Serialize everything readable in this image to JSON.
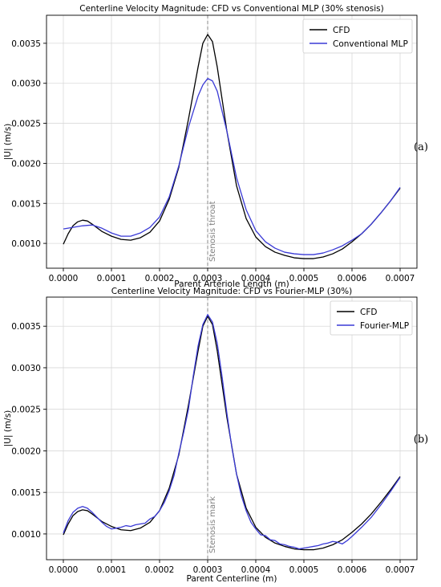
{
  "chart_data": [
    {
      "type": "line",
      "title": "Centerline Velocity Magnitude: CFD vs Conventional MLP (30% stenosis)",
      "xlabel": "Parent Arteriole Length (m)",
      "ylabel": "|U| (m/s)",
      "xlim": [
        -3.5e-05,
        0.000735
      ],
      "ylim": [
        0.00069,
        0.00385
      ],
      "xticks": [
        "0.0000",
        "0.0001",
        "0.0002",
        "0.0003",
        "0.0004",
        "0.0005",
        "0.0006",
        "0.0007"
      ],
      "xtick_values": [
        0,
        0.0001,
        0.0002,
        0.0003,
        0.0004,
        0.0005,
        0.0006,
        0.0007
      ],
      "yticks": [
        "0.0010",
        "0.0015",
        "0.0020",
        "0.0025",
        "0.0030",
        "0.0035"
      ],
      "ytick_values": [
        0.001,
        0.0015,
        0.002,
        0.0025,
        0.003,
        0.0035
      ],
      "grid": true,
      "legend_position": "top-right",
      "panel_label": "(a)",
      "annotation": {
        "text": "Stenosis throat",
        "x": 0.0003
      },
      "series": [
        {
          "name": "CFD",
          "color": "#000000",
          "x": [
            0,
            1e-05,
            2e-05,
            3e-05,
            4e-05,
            5e-05,
            6e-05,
            8e-05,
            0.0001,
            0.00012,
            0.00014,
            0.00016,
            0.00018,
            0.0002,
            0.00022,
            0.00024,
            0.00026,
            0.00028,
            0.00029,
            0.0003,
            0.00031,
            0.00032,
            0.00034,
            0.00036,
            0.00038,
            0.0004,
            0.00042,
            0.00044,
            0.00046,
            0.00048,
            0.0005,
            0.00052,
            0.00054,
            0.00056,
            0.00058,
            0.0006,
            0.00062,
            0.00064,
            0.00066,
            0.00068,
            0.0007
          ],
          "y": [
            0.00099,
            0.00112,
            0.00122,
            0.00127,
            0.00129,
            0.00128,
            0.00124,
            0.00115,
            0.00109,
            0.00105,
            0.00104,
            0.00107,
            0.00114,
            0.00128,
            0.00155,
            0.00195,
            0.00255,
            0.0032,
            0.0035,
            0.00361,
            0.00352,
            0.0032,
            0.0024,
            0.00172,
            0.00131,
            0.00108,
            0.00096,
            0.00089,
            0.00085,
            0.00082,
            0.00081,
            0.00081,
            0.00083,
            0.00087,
            0.00093,
            0.00102,
            0.00112,
            0.00124,
            0.00138,
            0.00153,
            0.00169
          ]
        },
        {
          "name": "Conventional MLP",
          "color": "#3a3ad6",
          "x": [
            0,
            2e-05,
            4e-05,
            6e-05,
            8e-05,
            0.0001,
            0.00012,
            0.00014,
            0.00016,
            0.00018,
            0.0002,
            0.00022,
            0.00024,
            0.00026,
            0.00028,
            0.00029,
            0.0003,
            0.00031,
            0.00032,
            0.00034,
            0.00036,
            0.00038,
            0.0004,
            0.00042,
            0.00044,
            0.00046,
            0.00048,
            0.0005,
            0.00052,
            0.00054,
            0.00056,
            0.00058,
            0.0006,
            0.00062,
            0.00064,
            0.00066,
            0.00068,
            0.0007
          ],
          "y": [
            0.00118,
            0.0012,
            0.00122,
            0.00123,
            0.00119,
            0.00113,
            0.00109,
            0.00109,
            0.00113,
            0.0012,
            0.00133,
            0.00158,
            0.00197,
            0.00245,
            0.00284,
            0.00298,
            0.00306,
            0.00303,
            0.0029,
            0.0024,
            0.00182,
            0.00142,
            0.00116,
            0.00102,
            0.00094,
            0.00089,
            0.00087,
            0.00086,
            0.00086,
            0.00088,
            0.00092,
            0.00097,
            0.00104,
            0.00112,
            0.00124,
            0.00138,
            0.00153,
            0.0017
          ]
        }
      ]
    },
    {
      "type": "line",
      "title": "Centerline Velocity Magnitude: CFD vs Fourier-MLP (30%)",
      "xlabel": "Parent Centerline (m)",
      "ylabel": "|U| (m/s)",
      "xlim": [
        -3.5e-05,
        0.000735
      ],
      "ylim": [
        0.00069,
        0.00385
      ],
      "xticks": [
        "0.0000",
        "0.0001",
        "0.0002",
        "0.0003",
        "0.0004",
        "0.0005",
        "0.0006",
        "0.0007"
      ],
      "xtick_values": [
        0,
        0.0001,
        0.0002,
        0.0003,
        0.0004,
        0.0005,
        0.0006,
        0.0007
      ],
      "yticks": [
        "0.0010",
        "0.0015",
        "0.0020",
        "0.0025",
        "0.0030",
        "0.0035"
      ],
      "ytick_values": [
        0.001,
        0.0015,
        0.002,
        0.0025,
        0.003,
        0.0035
      ],
      "grid": true,
      "legend_position": "top-right",
      "panel_label": "(b)",
      "annotation": {
        "text": "Stenosis mark",
        "x": 0.0003
      },
      "series": [
        {
          "name": "CFD",
          "color": "#000000",
          "x": [
            0,
            1e-05,
            2e-05,
            3e-05,
            4e-05,
            5e-05,
            6e-05,
            8e-05,
            0.0001,
            0.00012,
            0.00014,
            0.00016,
            0.00018,
            0.0002,
            0.00022,
            0.00024,
            0.00026,
            0.00028,
            0.00029,
            0.0003,
            0.00031,
            0.00032,
            0.00034,
            0.00036,
            0.00038,
            0.0004,
            0.00042,
            0.00044,
            0.00046,
            0.00048,
            0.0005,
            0.00052,
            0.00054,
            0.00056,
            0.00058,
            0.0006,
            0.00062,
            0.00064,
            0.00066,
            0.00068,
            0.0007
          ],
          "y": [
            0.00099,
            0.00112,
            0.00122,
            0.00127,
            0.00129,
            0.00128,
            0.00124,
            0.00115,
            0.00109,
            0.00105,
            0.00104,
            0.00107,
            0.00114,
            0.00128,
            0.00155,
            0.00195,
            0.00255,
            0.0032,
            0.0035,
            0.00362,
            0.00352,
            0.0032,
            0.0024,
            0.00172,
            0.00131,
            0.00108,
            0.00096,
            0.00089,
            0.00085,
            0.00082,
            0.00081,
            0.00081,
            0.00083,
            0.00087,
            0.00093,
            0.00102,
            0.00112,
            0.00124,
            0.00138,
            0.00153,
            0.00169
          ]
        },
        {
          "name": "Fourier-MLP",
          "color": "#3a3ad6",
          "x": [
            0,
            1e-05,
            2e-05,
            3e-05,
            4e-05,
            5e-05,
            6e-05,
            7e-05,
            8e-05,
            9e-05,
            0.0001,
            0.00011,
            0.00012,
            0.00013,
            0.00014,
            0.00015,
            0.00016,
            0.00017,
            0.00018,
            0.00019,
            0.0002,
            0.00021,
            0.00022,
            0.00023,
            0.00024,
            0.00025,
            0.00026,
            0.00027,
            0.00028,
            0.00029,
            0.0003,
            0.00031,
            0.00032,
            0.00033,
            0.00034,
            0.00035,
            0.00036,
            0.00037,
            0.00038,
            0.00039,
            0.0004,
            0.00041,
            0.00042,
            0.00043,
            0.00044,
            0.00045,
            0.00046,
            0.00047,
            0.00048,
            0.00049,
            0.0005,
            0.00051,
            0.00052,
            0.00053,
            0.00054,
            0.00055,
            0.00056,
            0.00057,
            0.00058,
            0.00059,
            0.0006,
            0.00062,
            0.00064,
            0.00066,
            0.00068,
            0.0007
          ],
          "y": [
            0.00101,
            0.00116,
            0.00126,
            0.00131,
            0.00133,
            0.00131,
            0.00126,
            0.0012,
            0.00114,
            0.00109,
            0.00106,
            0.00107,
            0.00108,
            0.0011,
            0.00109,
            0.00111,
            0.00112,
            0.00113,
            0.00118,
            0.00121,
            0.00128,
            0.00138,
            0.00152,
            0.0017,
            0.00197,
            0.00222,
            0.0025,
            0.0029,
            0.00326,
            0.00352,
            0.00364,
            0.00355,
            0.00329,
            0.00289,
            0.00245,
            0.00205,
            0.00172,
            0.00146,
            0.00128,
            0.00114,
            0.00106,
            0.00099,
            0.00098,
            0.00093,
            0.00092,
            0.00088,
            0.00087,
            0.00085,
            0.00084,
            0.00082,
            0.00083,
            0.00084,
            0.00085,
            0.00086,
            0.00088,
            0.00089,
            0.00091,
            0.0009,
            0.00088,
            0.00092,
            0.00097,
            0.00108,
            0.0012,
            0.00135,
            0.00151,
            0.00168
          ]
        }
      ]
    }
  ]
}
